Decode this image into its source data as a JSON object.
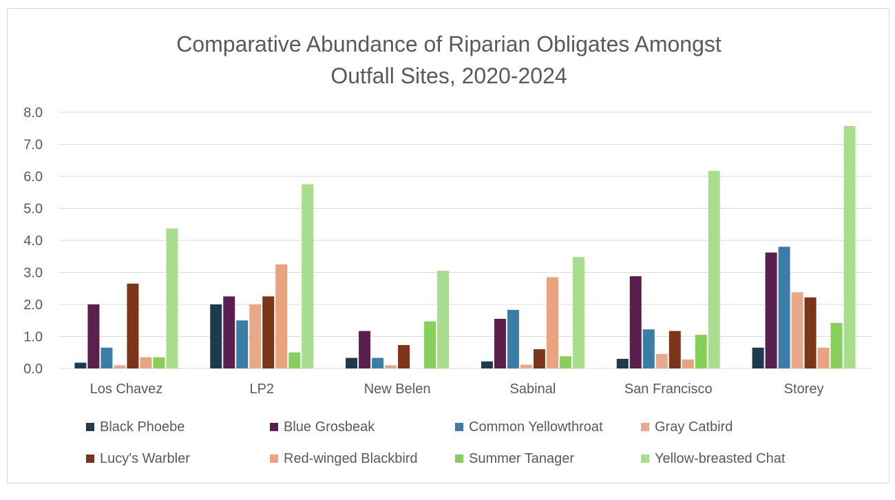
{
  "chart_data": {
    "type": "bar",
    "title_lines": [
      "Comparative Abundance of Riparian Obligates Amongst",
      "Outfall Sites, 2020-2024"
    ],
    "xlabel": "",
    "ylabel": "",
    "ylim": [
      0,
      8
    ],
    "yticks": [
      "0.0",
      "1.0",
      "2.0",
      "3.0",
      "4.0",
      "5.0",
      "6.0",
      "7.0",
      "8.0"
    ],
    "grid": true,
    "legend_position": "bottom",
    "categories": [
      "Los Chavez",
      "LP2",
      "New Belen",
      "Sabinal",
      "San Francisco",
      "Storey"
    ],
    "series": [
      {
        "name": "Black Phoebe",
        "color": "#1d3a4e",
        "values": [
          0.18,
          2.0,
          0.33,
          0.22,
          0.3,
          0.65
        ]
      },
      {
        "name": "Blue Grosbeak",
        "color": "#5a1e4f",
        "values": [
          2.0,
          2.25,
          1.17,
          1.55,
          2.88,
          3.62
        ]
      },
      {
        "name": "Common Yellowthroat",
        "color": "#3a7ea8",
        "values": [
          0.65,
          1.5,
          0.33,
          1.83,
          1.22,
          3.8
        ]
      },
      {
        "name": "Gray Catbird",
        "color": "#e7a98a",
        "values": [
          0.1,
          2.0,
          0.1,
          0.12,
          0.45,
          2.38
        ]
      },
      {
        "name": "Lucy's Warbler",
        "color": "#7b3518",
        "values": [
          2.65,
          2.25,
          0.73,
          0.6,
          1.17,
          2.22
        ]
      },
      {
        "name": "Red-winged Blackbird",
        "color": "#e9a37e",
        "values": [
          0.35,
          3.25,
          0.0,
          2.85,
          0.28,
          0.65
        ]
      },
      {
        "name": "Summer Tanager",
        "color": "#85cf5a",
        "values": [
          0.35,
          0.5,
          1.47,
          0.38,
          1.05,
          1.42
        ]
      },
      {
        "name": "Yellow-breasted Chat",
        "color": "#a9dd8e",
        "values": [
          4.37,
          5.75,
          3.05,
          3.48,
          6.17,
          7.57
        ]
      }
    ]
  }
}
